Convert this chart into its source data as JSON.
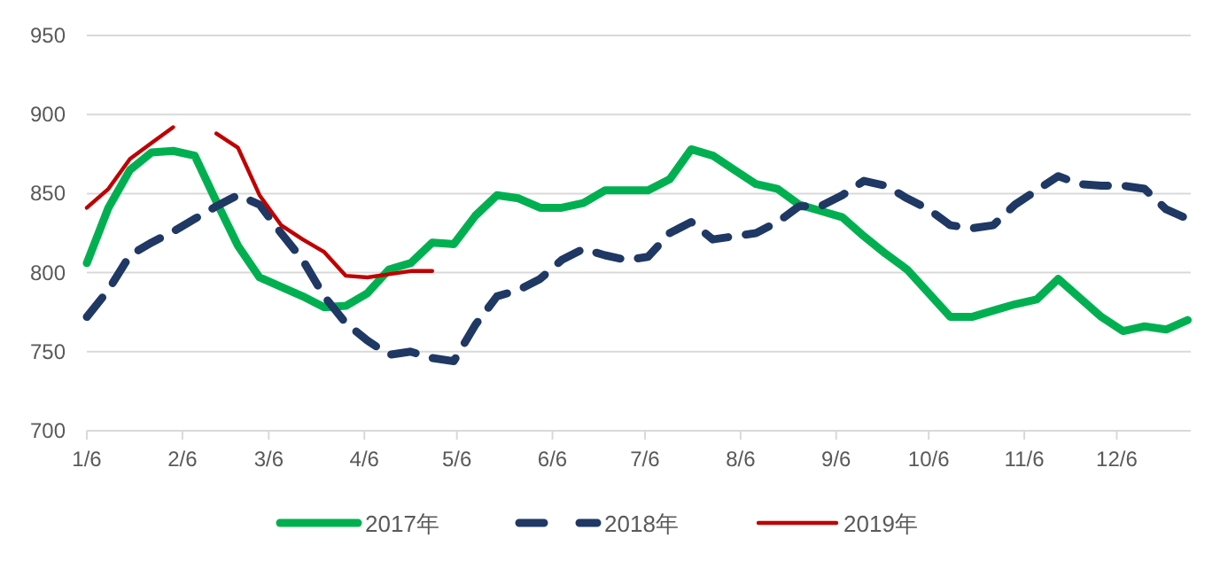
{
  "chart_data": {
    "type": "line",
    "x": [
      "--01-06",
      "--01-13",
      "--01-20",
      "--01-27",
      "--02-03",
      "--02-10",
      "--02-17",
      "--02-24",
      "--03-03",
      "--03-10",
      "--03-17",
      "--03-24",
      "--03-31",
      "--04-07",
      "--04-14",
      "--04-21",
      "--04-28",
      "--05-05",
      "--05-12",
      "--05-19",
      "--05-26",
      "--06-02",
      "--06-09",
      "--06-16",
      "--06-23",
      "--06-30",
      "--07-07",
      "--07-14",
      "--07-21",
      "--07-28",
      "--08-04",
      "--08-11",
      "--08-18",
      "--08-25",
      "--09-01",
      "--09-08",
      "--09-15",
      "--09-22",
      "--09-29",
      "--10-06",
      "--10-13",
      "--10-20",
      "--10-27",
      "--11-03",
      "--11-10",
      "--11-17",
      "--11-24",
      "--12-01",
      "--12-08",
      "--12-15",
      "--12-22",
      "--12-29"
    ],
    "xlim": [
      "--01-06",
      "--12-30"
    ],
    "xticks": [
      {
        "value": "--01-06",
        "label": "1/6"
      },
      {
        "value": "--02-06",
        "label": "2/6"
      },
      {
        "value": "--03-06",
        "label": "3/6"
      },
      {
        "value": "--04-06",
        "label": "4/6"
      },
      {
        "value": "--05-06",
        "label": "5/6"
      },
      {
        "value": "--06-06",
        "label": "6/6"
      },
      {
        "value": "--07-06",
        "label": "7/6"
      },
      {
        "value": "--08-06",
        "label": "8/6"
      },
      {
        "value": "--09-06",
        "label": "9/6"
      },
      {
        "value": "--10-06",
        "label": "10/6"
      },
      {
        "value": "--11-06",
        "label": "11/6"
      },
      {
        "value": "--12-06",
        "label": "12/6"
      }
    ],
    "ylim": [
      700,
      950
    ],
    "yticks": [
      700,
      750,
      800,
      850,
      900,
      950
    ],
    "grid": "y",
    "legend": "bottom",
    "series": [
      {
        "name": "2017年",
        "color": "#00b050",
        "line_style": "solid",
        "values": [
          806,
          841,
          865,
          876,
          877,
          874,
          845,
          817,
          797,
          791,
          785,
          778,
          779,
          787,
          802,
          806,
          819,
          818,
          836,
          849,
          847,
          841,
          841,
          844,
          852,
          852,
          852,
          859,
          878,
          874,
          865,
          856,
          853,
          843,
          839,
          835,
          823,
          812,
          802,
          787,
          772,
          772,
          776,
          780,
          783,
          796,
          784,
          772,
          763,
          766,
          764,
          770
        ]
      },
      {
        "name": "2018年",
        "color": "#1f3864",
        "line_style": "dashed",
        "values": [
          772,
          789,
          811,
          819,
          826,
          834,
          842,
          849,
          843,
          825,
          808,
          785,
          768,
          757,
          748,
          750,
          746,
          744,
          767,
          785,
          789,
          796,
          808,
          815,
          811,
          808,
          810,
          825,
          832,
          821,
          823,
          825,
          832,
          842,
          842,
          849,
          858,
          855,
          847,
          840,
          830,
          828,
          830,
          843,
          852,
          861,
          856,
          855,
          855,
          853,
          840,
          834
        ]
      },
      {
        "name": "2019年",
        "color": "#c00000",
        "line_style": "solid",
        "x": [
          "--01-06",
          "--01-13",
          "--01-20",
          "--01-27",
          "--02-03",
          "--02-10",
          "--02-17",
          "--02-24",
          "--03-03",
          "--03-10",
          "--03-17",
          "--03-24",
          "--03-31",
          "--04-07",
          "--04-14",
          "--04-21",
          "--04-28"
        ],
        "values": [
          841,
          853,
          872,
          882,
          892,
          null,
          888,
          879,
          849,
          830,
          821,
          813,
          798,
          797,
          799,
          801,
          801
        ]
      }
    ]
  }
}
